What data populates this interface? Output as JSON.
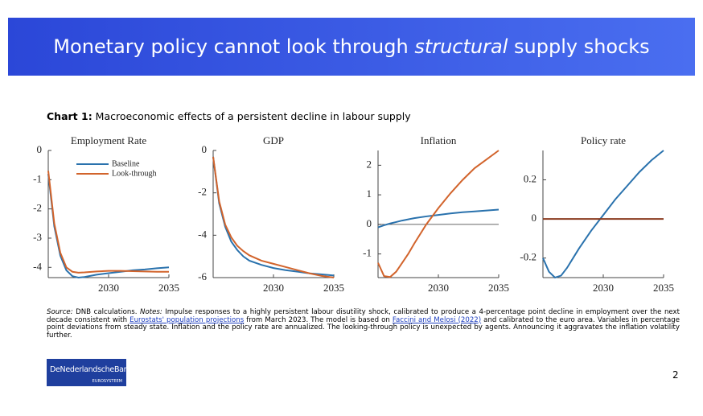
{
  "slide": {
    "title_before": "Monetary policy cannot look through ",
    "title_em": "structural",
    "title_after": " supply shocks",
    "caption_label": "Chart 1:",
    "caption_text": " Macroeconomic effects of a persistent decline in labour supply",
    "notes": [
      "Source:",
      " DNB calculations. ",
      "Notes:",
      " Impulse responses to a highly persistent labour disutility shock, calibrated to produce a 4-percentage point decline in employment over the next decade consistent with ",
      "Eurostats' population projections",
      " from March 2023. The model is based on ",
      "Faccini and Melosi (2022)",
      " and calibrated to the euro area. Variables in percentage point deviations from steady state. Inflation and the policy rate are annualized. The looking-through policy is unexpected by agents. Announcing it aggravates the inflation volatility further."
    ],
    "logo": "DeNederlandscheBank",
    "logo_sub": "EUROSYSTEEM",
    "page": "2"
  },
  "chart_data": [
    {
      "type": "line",
      "title": "Employment Rate",
      "legend": "upper left",
      "x": [
        2025,
        2025.5,
        2026,
        2026.5,
        2027,
        2027.5,
        2028,
        2029,
        2030,
        2031,
        2032,
        2033,
        2034,
        2035
      ],
      "xlim": [
        2025,
        2035
      ],
      "xticks": [
        2030,
        2035
      ],
      "ylim": [
        -4.35,
        0
      ],
      "yticks": [
        0,
        -1,
        -2,
        -3,
        -4
      ],
      "series": [
        {
          "name": "Baseline",
          "color": "#2a72ad",
          "values": [
            -0.8,
            -2.6,
            -3.6,
            -4.1,
            -4.3,
            -4.35,
            -4.33,
            -4.25,
            -4.2,
            -4.15,
            -4.1,
            -4.07,
            -4.03,
            -4.0
          ]
        },
        {
          "name": "Look-through",
          "color": "#d2642c",
          "values": [
            -0.7,
            -2.5,
            -3.5,
            -4.0,
            -4.15,
            -4.18,
            -4.17,
            -4.14,
            -4.12,
            -4.12,
            -4.13,
            -4.14,
            -4.15,
            -4.15
          ]
        }
      ]
    },
    {
      "type": "line",
      "title": "GDP",
      "x": [
        2025,
        2025.5,
        2026,
        2026.5,
        2027,
        2027.5,
        2028,
        2029,
        2030,
        2031,
        2032,
        2033,
        2034,
        2035
      ],
      "xlim": [
        2025,
        2035
      ],
      "xticks": [
        2030,
        2035
      ],
      "ylim": [
        -6,
        0
      ],
      "yticks": [
        0,
        -2,
        -4,
        -6
      ],
      "series": [
        {
          "color": "#2a72ad",
          "values": [
            -0.3,
            -2.5,
            -3.6,
            -4.3,
            -4.7,
            -5.0,
            -5.2,
            -5.4,
            -5.55,
            -5.65,
            -5.72,
            -5.8,
            -5.85,
            -5.9
          ]
        },
        {
          "color": "#d2642c",
          "values": [
            -0.3,
            -2.4,
            -3.5,
            -4.1,
            -4.5,
            -4.75,
            -4.95,
            -5.2,
            -5.35,
            -5.5,
            -5.65,
            -5.8,
            -5.92,
            -6.0
          ]
        }
      ]
    },
    {
      "type": "line",
      "title": "Inflation",
      "hline": 0,
      "x": [
        2025,
        2025.5,
        2026,
        2026.5,
        2027,
        2027.5,
        2028,
        2029,
        2030,
        2031,
        2032,
        2033,
        2034,
        2035
      ],
      "xlim": [
        2025,
        2035
      ],
      "xticks": [
        2030,
        2035
      ],
      "ylim": [
        -1.8,
        2.5
      ],
      "yticks": [
        -1,
        0,
        1,
        2
      ],
      "series": [
        {
          "color": "#2a72ad",
          "values": [
            -0.1,
            -0.03,
            0.03,
            0.08,
            0.13,
            0.17,
            0.21,
            0.27,
            0.32,
            0.37,
            0.41,
            0.44,
            0.47,
            0.5
          ]
        },
        {
          "color": "#d2642c",
          "values": [
            -1.3,
            -1.75,
            -1.78,
            -1.6,
            -1.3,
            -1.0,
            -0.65,
            0.0,
            0.55,
            1.05,
            1.5,
            1.9,
            2.2,
            2.5
          ]
        }
      ]
    },
    {
      "type": "line",
      "title": "Policy rate",
      "x": [
        2025,
        2025.5,
        2026,
        2026.5,
        2027,
        2027.5,
        2028,
        2029,
        2030,
        2031,
        2032,
        2033,
        2034,
        2035
      ],
      "xlim": [
        2025,
        2035
      ],
      "xticks": [
        2030,
        2035
      ],
      "ylim": [
        -0.3,
        0.35
      ],
      "yticks": [
        -0.2,
        0,
        0.2
      ],
      "series": [
        {
          "color": "#2a72ad",
          "values": [
            -0.2,
            -0.27,
            -0.3,
            -0.29,
            -0.25,
            -0.2,
            -0.15,
            -0.06,
            0.02,
            0.1,
            0.17,
            0.24,
            0.3,
            0.35
          ]
        },
        {
          "color": "#8a3a1e",
          "values": [
            0,
            0,
            0,
            0,
            0,
            0,
            0,
            0,
            0,
            0,
            0,
            0,
            0,
            0
          ]
        }
      ]
    }
  ]
}
